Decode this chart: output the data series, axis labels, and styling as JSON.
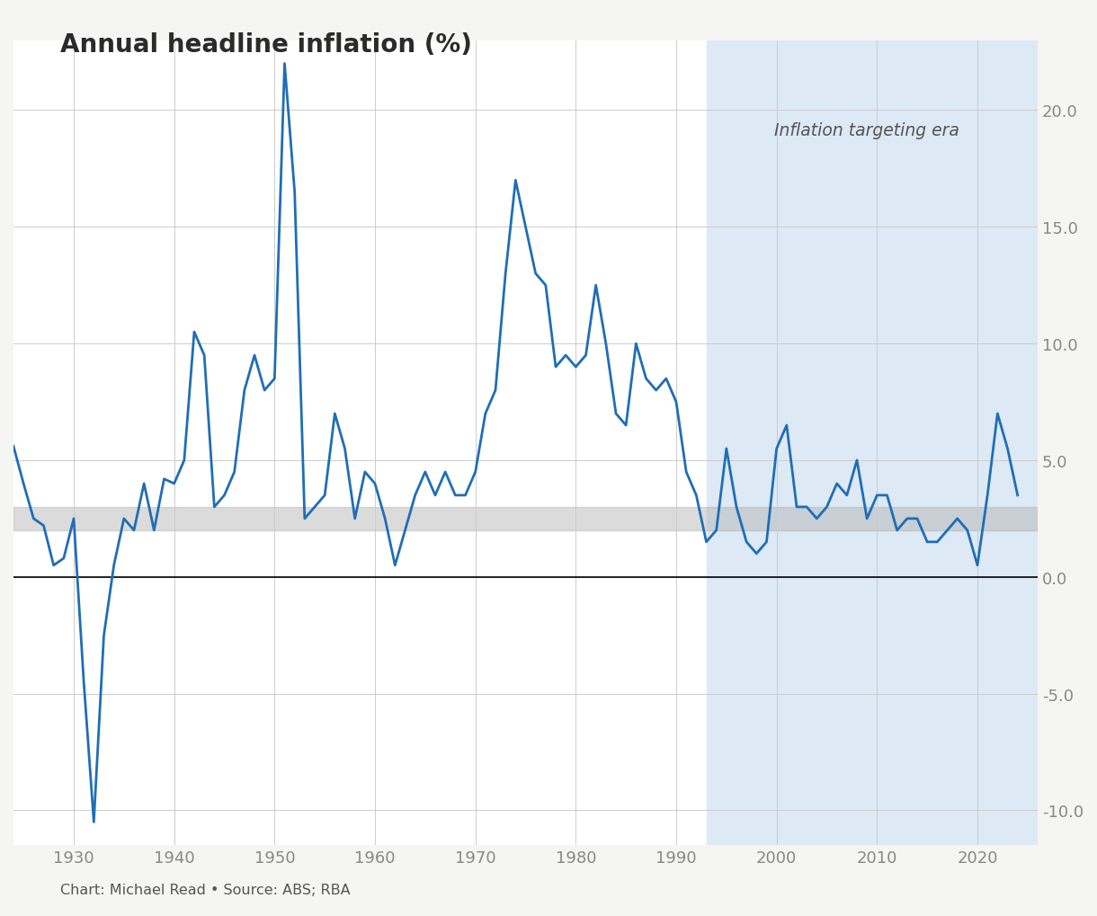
{
  "title": "Annual headline inflation (%)",
  "caption": "Chart: Michael Read • Source: ABS; RBA",
  "line_color": "#1f6eb5",
  "line_width": 2.0,
  "bg_color": "#f5f5f3",
  "plot_bg_color": "#ffffff",
  "shading_color": "#dde9f5",
  "band_color": "#b0b0b0",
  "band_ymin": 2.0,
  "band_ymax": 3.0,
  "inflation_target_start": 1993,
  "inflation_target_label": "Inflation targeting era",
  "zero_line_color": "#000000",
  "yticks": [
    -10.0,
    -5.0,
    0.0,
    5.0,
    10.0,
    15.0,
    20.0
  ],
  "xticks": [
    1930,
    1940,
    1950,
    1960,
    1970,
    1980,
    1990,
    2000,
    2010,
    2020
  ],
  "ylim": [
    -11.5,
    23.0
  ],
  "xlim": [
    1924,
    2026
  ],
  "years": [
    1924,
    1925,
    1926,
    1927,
    1928,
    1929,
    1930,
    1931,
    1932,
    1933,
    1934,
    1935,
    1936,
    1937,
    1938,
    1939,
    1940,
    1941,
    1942,
    1943,
    1944,
    1945,
    1946,
    1947,
    1948,
    1949,
    1950,
    1951,
    1952,
    1953,
    1954,
    1955,
    1956,
    1957,
    1958,
    1959,
    1960,
    1961,
    1962,
    1963,
    1964,
    1965,
    1966,
    1967,
    1968,
    1969,
    1970,
    1971,
    1972,
    1973,
    1974,
    1975,
    1976,
    1977,
    1978,
    1979,
    1980,
    1981,
    1982,
    1983,
    1984,
    1985,
    1986,
    1987,
    1988,
    1989,
    1990,
    1991,
    1992,
    1993,
    1994,
    1995,
    1996,
    1997,
    1998,
    1999,
    2000,
    2001,
    2002,
    2003,
    2004,
    2005,
    2006,
    2007,
    2008,
    2009,
    2010,
    2011,
    2012,
    2013,
    2014,
    2015,
    2016,
    2017,
    2018,
    2019,
    2020,
    2021,
    2022,
    2023,
    2024
  ],
  "values": [
    5.6,
    4.0,
    2.5,
    2.2,
    0.5,
    0.8,
    2.5,
    -4.5,
    -10.5,
    -2.5,
    0.5,
    2.5,
    2.0,
    4.0,
    2.0,
    4.2,
    4.0,
    5.0,
    10.5,
    9.5,
    3.0,
    3.5,
    4.5,
    8.0,
    9.5,
    8.0,
    8.5,
    22.0,
    16.5,
    2.5,
    3.0,
    3.5,
    7.0,
    5.5,
    2.5,
    4.5,
    4.0,
    2.5,
    0.5,
    2.0,
    3.5,
    4.5,
    3.5,
    4.5,
    3.5,
    3.5,
    4.5,
    7.0,
    8.0,
    13.0,
    17.0,
    15.0,
    13.0,
    12.5,
    9.0,
    9.5,
    9.0,
    9.5,
    12.5,
    10.0,
    7.0,
    6.5,
    10.0,
    8.5,
    8.0,
    8.5,
    7.5,
    4.5,
    3.5,
    1.5,
    2.0,
    5.5,
    3.0,
    1.5,
    1.0,
    1.5,
    5.5,
    6.5,
    3.0,
    3.0,
    2.5,
    3.0,
    4.0,
    3.5,
    5.0,
    2.5,
    3.5,
    3.5,
    2.0,
    2.5,
    2.5,
    1.5,
    1.5,
    2.0,
    2.5,
    2.0,
    0.5,
    3.5,
    7.0,
    5.5,
    3.5
  ]
}
